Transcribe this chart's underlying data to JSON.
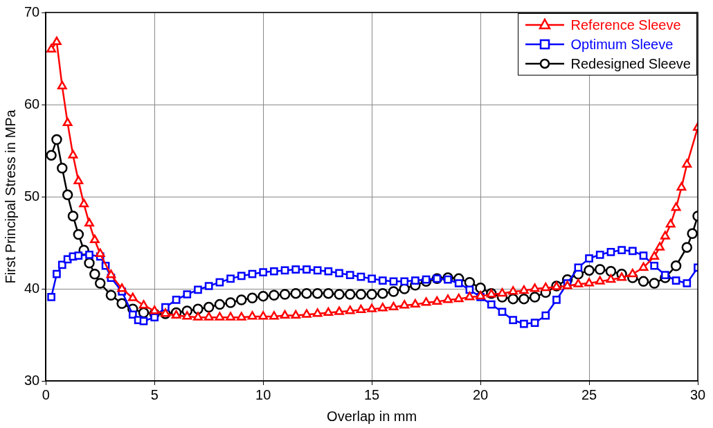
{
  "chart_data": {
    "type": "line",
    "xlabel": "Overlap in mm",
    "ylabel": "First Principal Stress in MPa",
    "xlim": [
      0,
      30
    ],
    "xticks": [
      0,
      5,
      10,
      15,
      20,
      25,
      30
    ],
    "ylim": [
      30,
      70
    ],
    "yticks": [
      30,
      40,
      50,
      60,
      70
    ],
    "grid": true,
    "legend": "top right",
    "line_style": "solid",
    "series": [
      {
        "name": "Reference Sleeve",
        "color": "#ff0000",
        "marker": "triangle",
        "x": [
          0.25,
          0.5,
          0.75,
          1,
          1.25,
          1.5,
          1.75,
          2,
          2.25,
          2.5,
          3,
          3.5,
          4,
          4.5,
          5,
          5.5,
          6,
          6.5,
          7,
          7.5,
          8,
          8.5,
          9,
          9.5,
          10,
          10.5,
          11,
          11.5,
          12,
          12.5,
          13,
          13.5,
          14,
          14.5,
          15,
          15.5,
          16,
          16.5,
          17,
          17.5,
          18,
          18.5,
          19,
          19.5,
          20,
          20.5,
          21,
          21.5,
          22,
          22.5,
          23,
          23.5,
          24,
          24.5,
          25,
          25.5,
          26,
          26.5,
          27,
          27.5,
          28,
          28.25,
          28.5,
          28.75,
          29,
          29.25,
          29.5,
          30
        ],
        "values": [
          66,
          66.8,
          62,
          58,
          54.5,
          51.7,
          49.2,
          47.1,
          45.3,
          43.8,
          41.5,
          40,
          39,
          38.2,
          37.6,
          37.3,
          37.1,
          37,
          36.9,
          36.9,
          36.9,
          36.9,
          36.9,
          37,
          37,
          37,
          37.1,
          37.1,
          37.2,
          37.3,
          37.4,
          37.5,
          37.6,
          37.7,
          37.8,
          37.9,
          38,
          38.2,
          38.3,
          38.5,
          38.6,
          38.8,
          38.9,
          39.1,
          39.2,
          39.4,
          39.5,
          39.7,
          39.8,
          40,
          40.1,
          40.2,
          40.3,
          40.5,
          40.6,
          40.8,
          41,
          41.2,
          41.6,
          42.3,
          43.5,
          44.5,
          45.7,
          47,
          48.8,
          51,
          53.5,
          57.5
        ]
      },
      {
        "name": "Optimum Sleeve",
        "color": "#0000ff",
        "marker": "square",
        "x": [
          0.25,
          0.5,
          0.75,
          1,
          1.25,
          1.5,
          2,
          2.5,
          2.75,
          3,
          3.5,
          4,
          4.25,
          4.5,
          5,
          5.5,
          6,
          6.5,
          7,
          7.5,
          8,
          8.5,
          9,
          9.5,
          10,
          10.5,
          11,
          11.5,
          12,
          12.5,
          13,
          13.5,
          14,
          14.5,
          15,
          15.5,
          16,
          16.5,
          17,
          17.5,
          18,
          18.5,
          19,
          19.5,
          20,
          20.5,
          21,
          21.5,
          22,
          22.5,
          23,
          23.5,
          24,
          24.5,
          25,
          25.5,
          26,
          26.5,
          27,
          27.5,
          28,
          28.5,
          29,
          29.5,
          30
        ],
        "values": [
          39.1,
          41.6,
          42.6,
          43.2,
          43.5,
          43.6,
          43.7,
          43.5,
          42.5,
          41.2,
          39.7,
          37.2,
          36.6,
          36.5,
          36.9,
          38,
          38.8,
          39.4,
          39.9,
          40.3,
          40.7,
          41.1,
          41.4,
          41.6,
          41.8,
          41.9,
          42,
          42.1,
          42.1,
          42,
          41.9,
          41.7,
          41.5,
          41.3,
          41.1,
          40.9,
          40.8,
          40.8,
          40.9,
          41,
          41.1,
          41,
          40.6,
          39.9,
          39.1,
          38.3,
          37.5,
          36.6,
          36.2,
          36.3,
          37.1,
          38.8,
          40.6,
          42.3,
          43.3,
          43.7,
          44,
          44.2,
          44.1,
          43.6,
          42.5,
          41.5,
          40.9,
          40.6,
          42.3
        ]
      },
      {
        "name": "Redesigned Sleeve",
        "color": "#000000",
        "marker": "circle",
        "x": [
          0.25,
          0.5,
          0.75,
          1,
          1.25,
          1.5,
          1.75,
          2,
          2.25,
          2.5,
          3,
          3.5,
          4,
          4.5,
          5,
          5.5,
          6,
          6.5,
          7,
          7.5,
          8,
          8.5,
          9,
          9.5,
          10,
          10.5,
          11,
          11.5,
          12,
          12.5,
          13,
          13.5,
          14,
          14.5,
          15,
          15.5,
          16,
          16.5,
          17,
          17.5,
          18,
          18.5,
          19,
          19.5,
          20,
          20.5,
          21,
          21.5,
          22,
          22.5,
          23,
          23.5,
          24,
          24.5,
          25,
          25.5,
          26,
          26.5,
          27,
          27.5,
          28,
          28.5,
          29,
          29.5,
          29.75,
          30
        ],
        "values": [
          54.5,
          56.2,
          53.1,
          50.2,
          47.9,
          45.9,
          44.2,
          42.8,
          41.6,
          40.6,
          39.3,
          38.4,
          37.8,
          37.4,
          37.3,
          37.3,
          37.4,
          37.6,
          37.8,
          38,
          38.3,
          38.5,
          38.8,
          39,
          39.2,
          39.3,
          39.4,
          39.5,
          39.5,
          39.5,
          39.5,
          39.4,
          39.4,
          39.4,
          39.4,
          39.5,
          39.7,
          40,
          40.4,
          40.8,
          41.1,
          41.2,
          41.1,
          40.7,
          40.1,
          39.5,
          39.1,
          38.9,
          38.9,
          39.1,
          39.6,
          40.3,
          41,
          41.6,
          42,
          42.1,
          41.9,
          41.6,
          41.2,
          40.8,
          40.6,
          41.2,
          42.5,
          44.5,
          46,
          47.9
        ]
      }
    ]
  }
}
